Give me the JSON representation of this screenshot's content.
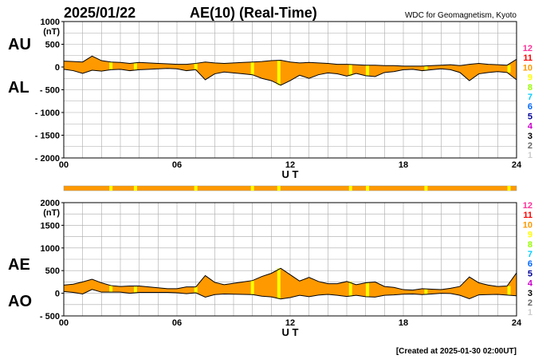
{
  "header": {
    "date": "2025/01/22",
    "title": "AE(10) (Real-Time)",
    "source": "WDC for Geomagnetism, Kyoto"
  },
  "footer": {
    "created": "[Created at 2025-01-30 02:00UT]"
  },
  "colors": {
    "fill": "#ff9900",
    "highlight": "#ffff00",
    "grid": "#a9a9a9",
    "frame": "#000000",
    "ao_line": "#000000"
  },
  "station_count_legend": [
    {
      "label": "12",
      "color": "#ff3399"
    },
    {
      "label": "11",
      "color": "#ff0000"
    },
    {
      "label": "10",
      "color": "#ff9900"
    },
    {
      "label": "9",
      "color": "#ffff00"
    },
    {
      "label": "8",
      "color": "#99ff00"
    },
    {
      "label": "7",
      "color": "#00ccff"
    },
    {
      "label": "6",
      "color": "#0066ff"
    },
    {
      "label": "5",
      "color": "#000099"
    },
    {
      "label": "4",
      "color": "#cc00cc"
    },
    {
      "label": "3",
      "color": "#000000"
    },
    {
      "label": "2",
      "color": "#666666"
    },
    {
      "label": "1",
      "color": "#cccccc"
    }
  ],
  "chart_data": [
    {
      "type": "area",
      "name": "AU/AL panel",
      "series_labels": [
        "AU",
        "AL"
      ],
      "unit": "(nT)",
      "xlabel": "U T",
      "xlim": [
        0,
        24
      ],
      "x_ticks": [
        "00",
        "06",
        "12",
        "18",
        "24"
      ],
      "ylim": [
        -2000,
        1000
      ],
      "y_ticks": [
        "1000",
        "500",
        "0",
        "- 500",
        "- 1000",
        "- 1500",
        "- 2000"
      ],
      "grid": true,
      "x": [
        0,
        0.5,
        1,
        1.5,
        2,
        2.5,
        3,
        3.5,
        4,
        4.5,
        5,
        5.5,
        6,
        6.5,
        7,
        7.5,
        8,
        8.5,
        9,
        9.5,
        10,
        10.5,
        11,
        11.5,
        12,
        12.5,
        13,
        13.5,
        14,
        14.5,
        15,
        15.5,
        16,
        16.5,
        17,
        17.5,
        18,
        18.5,
        19,
        19.5,
        20,
        20.5,
        21,
        21.5,
        22,
        22.5,
        23,
        23.5,
        24
      ],
      "series": [
        {
          "name": "AU",
          "values": [
            130,
            120,
            110,
            240,
            140,
            110,
            100,
            80,
            100,
            90,
            80,
            70,
            60,
            60,
            80,
            110,
            90,
            80,
            90,
            100,
            110,
            120,
            140,
            150,
            110,
            90,
            100,
            90,
            80,
            60,
            60,
            50,
            40,
            40,
            30,
            30,
            20,
            20,
            20,
            30,
            40,
            50,
            30,
            60,
            80,
            60,
            50,
            40,
            170
          ]
        },
        {
          "name": "AL",
          "values": [
            -50,
            -80,
            -140,
            -70,
            -90,
            -60,
            -50,
            -80,
            -60,
            -50,
            -40,
            -30,
            -40,
            -80,
            -60,
            -280,
            -150,
            -110,
            -130,
            -150,
            -170,
            -250,
            -300,
            -400,
            -300,
            -180,
            -250,
            -170,
            -130,
            -150,
            -200,
            -140,
            -190,
            -210,
            -120,
            -100,
            -60,
            -50,
            -80,
            -60,
            -40,
            -60,
            -120,
            -300,
            -150,
            -120,
            -100,
            -120,
            -280
          ]
        }
      ]
    },
    {
      "type": "area",
      "name": "AE/AO panel",
      "series_labels": [
        "AE",
        "AO"
      ],
      "unit": "(nT)",
      "xlabel": "U T",
      "xlim": [
        0,
        24
      ],
      "x_ticks": [
        "00",
        "06",
        "12",
        "18",
        "24"
      ],
      "ylim": [
        -500,
        2000
      ],
      "y_ticks": [
        "2000",
        "1500",
        "1000",
        "500",
        "0",
        "- 500"
      ],
      "grid": true,
      "x": [
        0,
        0.5,
        1,
        1.5,
        2,
        2.5,
        3,
        3.5,
        4,
        4.5,
        5,
        5.5,
        6,
        6.5,
        7,
        7.5,
        8,
        8.5,
        9,
        9.5,
        10,
        10.5,
        11,
        11.5,
        12,
        12.5,
        13,
        13.5,
        14,
        14.5,
        15,
        15.5,
        16,
        16.5,
        17,
        17.5,
        18,
        18.5,
        19,
        19.5,
        20,
        20.5,
        21,
        21.5,
        22,
        22.5,
        23,
        23.5,
        24
      ],
      "series": [
        {
          "name": "AE",
          "values": [
            180,
            200,
            250,
            310,
            230,
            170,
            150,
            160,
            160,
            140,
            120,
            100,
            100,
            140,
            140,
            390,
            240,
            190,
            220,
            250,
            280,
            370,
            440,
            550,
            410,
            270,
            350,
            260,
            210,
            210,
            260,
            190,
            230,
            250,
            150,
            130,
            80,
            70,
            100,
            90,
            80,
            110,
            150,
            360,
            230,
            180,
            150,
            160,
            450
          ]
        },
        {
          "name": "AO",
          "values": [
            40,
            20,
            -15,
            85,
            25,
            25,
            25,
            0,
            20,
            20,
            20,
            20,
            10,
            -10,
            10,
            -85,
            -30,
            -15,
            -20,
            -25,
            -30,
            -65,
            -80,
            -125,
            -95,
            -45,
            -75,
            -40,
            -25,
            -45,
            -70,
            -45,
            -75,
            -85,
            -45,
            -35,
            -20,
            -15,
            -30,
            -15,
            0,
            -5,
            -45,
            -120,
            -35,
            -30,
            -25,
            -40,
            -55
          ]
        }
      ]
    }
  ],
  "highlight_hours": [
    2.5,
    3.8,
    7.0,
    10.0,
    11.4,
    15.2,
    16.1,
    19.2,
    23.6
  ]
}
